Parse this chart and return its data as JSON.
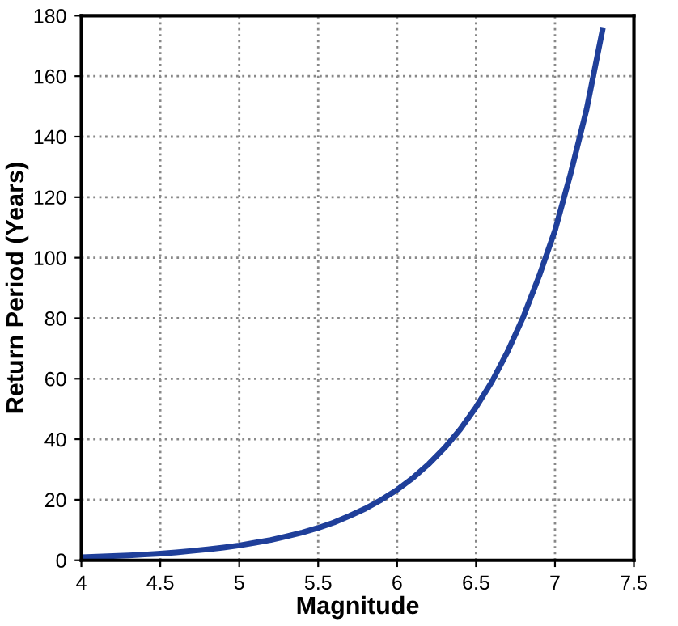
{
  "chart_data": {
    "type": "line",
    "xlabel": "Magnitude",
    "ylabel": "Return Period (Years)",
    "x": [
      4.0,
      4.1,
      4.2,
      4.3,
      4.4,
      4.5,
      4.6,
      4.7,
      4.8,
      4.9,
      5.0,
      5.1,
      5.2,
      5.3,
      5.4,
      5.5,
      5.6,
      5.7,
      5.8,
      5.9,
      6.0,
      6.1,
      6.2,
      6.3,
      6.4,
      6.5,
      6.6,
      6.7,
      6.8,
      6.9,
      7.0,
      7.1,
      7.2,
      7.3
    ],
    "series": [
      {
        "color": "#1f3f9a",
        "values": [
          1.0,
          1.2,
          1.4,
          1.6,
          1.9,
          2.2,
          2.6,
          3.1,
          3.6,
          4.2,
          4.9,
          5.8,
          6.7,
          7.9,
          9.2,
          10.7,
          12.5,
          14.7,
          17.1,
          20.0,
          23.3,
          27.2,
          31.8,
          37.1,
          43.3,
          50.6,
          59,
          69,
          80.5,
          94,
          109,
          128,
          149,
          175
        ]
      }
    ],
    "xlim": [
      4,
      7.5
    ],
    "xticks": [
      4,
      4.5,
      5,
      5.5,
      6,
      6.5,
      7,
      7.5
    ],
    "ylim": [
      0,
      180
    ],
    "yticks": [
      0,
      20,
      40,
      60,
      80,
      100,
      120,
      140,
      160,
      180
    ],
    "grid": true,
    "line_style": "solid",
    "marker": "none"
  }
}
